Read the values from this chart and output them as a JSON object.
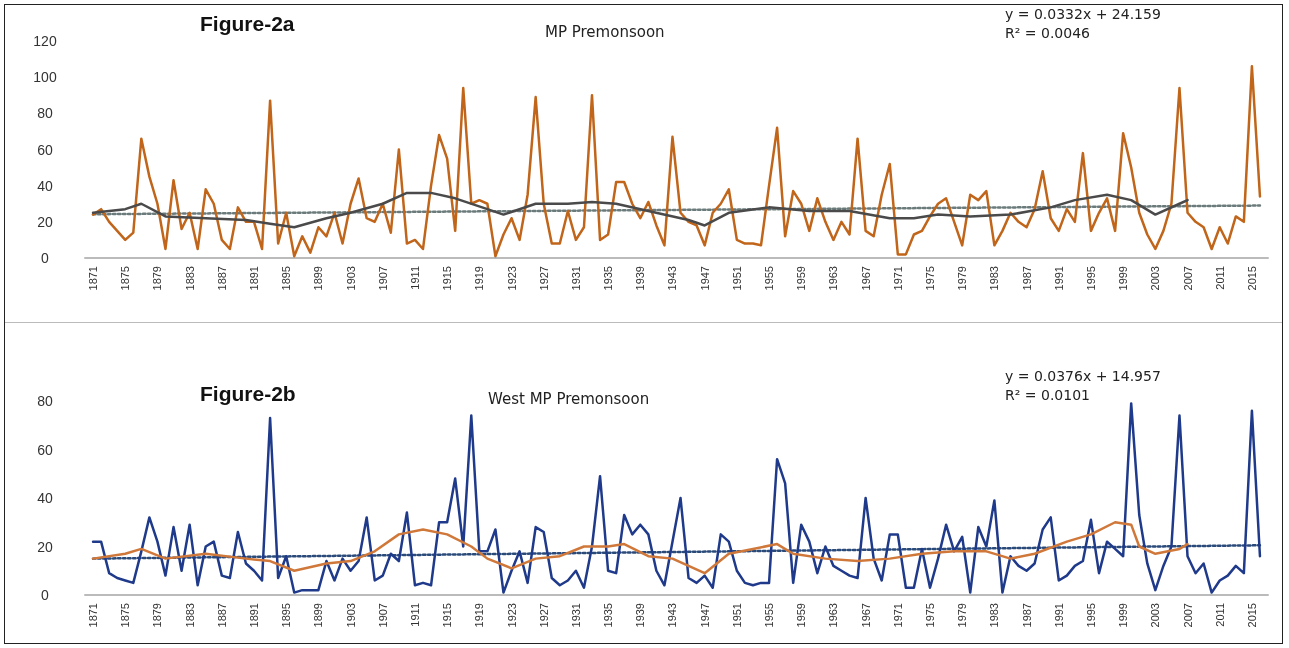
{
  "chart_data": [
    {
      "type": "line",
      "title": "MP Premonsoon",
      "annotations": [
        "Figure-2a",
        "y = 0.0332x + 24.159",
        "R² = 0.0046"
      ],
      "x": [
        1871,
        1872,
        1873,
        1874,
        1875,
        1876,
        1877,
        1878,
        1879,
        1880,
        1881,
        1882,
        1883,
        1884,
        1885,
        1886,
        1887,
        1888,
        1889,
        1890,
        1891,
        1892,
        1893,
        1894,
        1895,
        1896,
        1897,
        1898,
        1899,
        1900,
        1901,
        1902,
        1903,
        1904,
        1905,
        1906,
        1907,
        1908,
        1909,
        1910,
        1911,
        1912,
        1913,
        1914,
        1915,
        1916,
        1917,
        1918,
        1919,
        1920,
        1921,
        1922,
        1923,
        1924,
        1925,
        1926,
        1927,
        1928,
        1929,
        1930,
        1931,
        1932,
        1933,
        1934,
        1935,
        1936,
        1937,
        1938,
        1939,
        1940,
        1941,
        1942,
        1943,
        1944,
        1945,
        1946,
        1947,
        1948,
        1949,
        1950,
        1951,
        1952,
        1953,
        1954,
        1955,
        1956,
        1957,
        1958,
        1959,
        1960,
        1961,
        1962,
        1963,
        1964,
        1965,
        1966,
        1967,
        1968,
        1969,
        1970,
        1971,
        1972,
        1973,
        1974,
        1975,
        1976,
        1977,
        1978,
        1979,
        1980,
        1981,
        1982,
        1983,
        1984,
        1985,
        1986,
        1987,
        1988,
        1989,
        1990,
        1991,
        1992,
        1993,
        1994,
        1995,
        1996,
        1997,
        1998,
        1999,
        2000,
        2001,
        2002,
        2003,
        2004,
        2005,
        2006,
        2007,
        2008,
        2009,
        2010,
        2011,
        2012,
        2013,
        2014,
        2015,
        2016
      ],
      "series": [
        {
          "color": "#c0651a",
          "values": [
            24,
            27,
            20,
            15,
            10,
            14,
            66,
            45,
            30,
            5,
            43,
            16,
            25,
            5,
            38,
            30,
            10,
            5,
            28,
            20,
            20,
            5,
            87,
            8,
            25,
            1,
            12,
            3,
            17,
            12,
            25,
            8,
            30,
            44,
            22,
            20,
            30,
            14,
            60,
            8,
            10,
            5,
            40,
            68,
            55,
            15,
            94,
            30,
            32,
            30,
            1,
            13,
            22,
            10,
            35,
            89,
            30,
            8,
            8,
            26,
            10,
            17,
            90,
            10,
            13,
            42,
            42,
            30,
            22,
            31,
            18,
            7,
            67,
            25,
            20,
            18,
            7,
            25,
            30,
            38,
            10,
            8,
            8,
            7,
            40,
            72,
            12,
            37,
            30,
            15,
            33,
            20,
            10,
            20,
            13,
            66,
            15,
            12,
            35,
            52,
            2,
            2,
            13,
            15,
            23,
            30,
            33,
            20,
            7,
            35,
            32,
            37,
            7,
            15,
            25,
            20,
            17,
            27,
            48,
            22,
            15,
            27,
            20,
            58,
            15,
            25,
            33,
            15,
            69,
            50,
            25,
            13,
            5,
            15,
            30,
            94,
            25,
            20,
            17,
            5,
            17,
            8,
            23,
            20,
            106,
            34
          ]
        },
        {
          "color": "#4a4a4a",
          "x": [
            1871,
            1875,
            1877,
            1880,
            1885,
            1890,
            1893,
            1896,
            1900,
            1903,
            1907,
            1910,
            1913,
            1916,
            1920,
            1922,
            1926,
            1930,
            1933,
            1936,
            1940,
            1945,
            1947,
            1950,
            1955,
            1960,
            1965,
            1970,
            1973,
            1976,
            1980,
            1985,
            1990,
            1993,
            1997,
            2000,
            2003,
            2006,
            2007
          ],
          "values": [
            25,
            27,
            30,
            23,
            22,
            21,
            19,
            17,
            22,
            25,
            30,
            36,
            36,
            33,
            27,
            24,
            30,
            30,
            31,
            30,
            26,
            21,
            18,
            25,
            28,
            26,
            26,
            22,
            22,
            24,
            23,
            24,
            28,
            32,
            35,
            32,
            24,
            30,
            32
          ]
        },
        {
          "color": "#6b7b7b",
          "line_style": "dotted",
          "x": [
            1871,
            2016
          ],
          "values": [
            24.2,
            29.0
          ]
        }
      ],
      "xlim": [
        1870,
        2017
      ],
      "xticks": [
        1871,
        1875,
        1879,
        1883,
        1887,
        1891,
        1895,
        1899,
        1903,
        1907,
        1911,
        1915,
        1919,
        1923,
        1927,
        1931,
        1935,
        1939,
        1943,
        1947,
        1951,
        1955,
        1959,
        1963,
        1967,
        1971,
        1975,
        1979,
        1983,
        1987,
        1991,
        1995,
        1999,
        2003,
        2007,
        2011,
        2015
      ],
      "ylim": [
        0,
        120
      ],
      "yticks": [
        0,
        20,
        40,
        60,
        80,
        100,
        120
      ],
      "grid": false,
      "marker": "none"
    },
    {
      "type": "line",
      "title": "West MP Premonsoon",
      "annotations": [
        "Figure-2b",
        "y = 0.0376x + 14.957",
        "R² = 0.0101"
      ],
      "x": [
        1871,
        1872,
        1873,
        1874,
        1875,
        1876,
        1877,
        1878,
        1879,
        1880,
        1881,
        1882,
        1883,
        1884,
        1885,
        1886,
        1887,
        1888,
        1889,
        1890,
        1891,
        1892,
        1893,
        1894,
        1895,
        1896,
        1897,
        1898,
        1899,
        1900,
        1901,
        1902,
        1903,
        1904,
        1905,
        1906,
        1907,
        1908,
        1909,
        1910,
        1911,
        1912,
        1913,
        1914,
        1915,
        1916,
        1917,
        1918,
        1919,
        1920,
        1921,
        1922,
        1923,
        1924,
        1925,
        1926,
        1927,
        1928,
        1929,
        1930,
        1931,
        1932,
        1933,
        1934,
        1935,
        1936,
        1937,
        1938,
        1939,
        1940,
        1941,
        1942,
        1943,
        1944,
        1945,
        1946,
        1947,
        1948,
        1949,
        1950,
        1951,
        1952,
        1953,
        1954,
        1955,
        1956,
        1957,
        1958,
        1959,
        1960,
        1961,
        1962,
        1963,
        1964,
        1965,
        1966,
        1967,
        1968,
        1969,
        1970,
        1971,
        1972,
        1973,
        1974,
        1975,
        1976,
        1977,
        1978,
        1979,
        1980,
        1981,
        1982,
        1983,
        1984,
        1985,
        1986,
        1987,
        1988,
        1989,
        1990,
        1991,
        1992,
        1993,
        1994,
        1995,
        1996,
        1997,
        1998,
        1999,
        2000,
        2001,
        2002,
        2003,
        2004,
        2005,
        2006,
        2007,
        2008,
        2009,
        2010,
        2011,
        2012,
        2013,
        2014,
        2015,
        2016
      ],
      "series": [
        {
          "color": "#1f3a8a",
          "values": [
            22,
            22,
            9,
            7,
            6,
            5,
            18,
            32,
            22,
            8,
            28,
            10,
            29,
            4,
            20,
            22,
            8,
            7,
            26,
            13,
            10,
            6,
            73,
            7,
            16,
            1,
            2,
            2,
            2,
            14,
            6,
            15,
            10,
            14,
            32,
            6,
            8,
            17,
            14,
            34,
            4,
            5,
            4,
            30,
            30,
            48,
            20,
            74,
            18,
            18,
            27,
            1,
            10,
            18,
            5,
            28,
            26,
            7,
            4,
            6,
            10,
            3,
            20,
            49,
            10,
            9,
            33,
            25,
            29,
            25,
            10,
            4,
            22,
            40,
            7,
            5,
            8,
            3,
            25,
            22,
            10,
            5,
            4,
            5,
            5,
            56,
            46,
            5,
            29,
            22,
            9,
            20,
            12,
            10,
            8,
            7,
            40,
            15,
            6,
            25,
            25,
            3,
            3,
            19,
            3,
            15,
            29,
            18,
            24,
            1,
            28,
            20,
            39,
            1,
            16,
            12,
            10,
            13,
            27,
            32,
            6,
            8,
            12,
            14,
            31,
            9,
            22,
            19,
            16,
            79,
            33,
            13,
            2,
            12,
            20,
            74,
            16,
            9,
            13,
            1,
            6,
            8,
            12,
            9,
            76,
            16
          ]
        },
        {
          "color": "#d0783a",
          "x": [
            1871,
            1875,
            1877,
            1880,
            1885,
            1890,
            1893,
            1896,
            1900,
            1903,
            1906,
            1909,
            1912,
            1915,
            1918,
            1920,
            1923,
            1926,
            1929,
            1932,
            1935,
            1937,
            1940,
            1943,
            1947,
            1950,
            1953,
            1956,
            1958,
            1962,
            1966,
            1970,
            1974,
            1978,
            1982,
            1985,
            1988,
            1992,
            1995,
            1998,
            2000,
            2001,
            2003,
            2006,
            2007
          ],
          "values": [
            15,
            17,
            19,
            15,
            17,
            15,
            14,
            10,
            13,
            14,
            18,
            25,
            27,
            25,
            20,
            15,
            11,
            15,
            16,
            20,
            20,
            21,
            16,
            15,
            9,
            17,
            19,
            21,
            17,
            15,
            14,
            15,
            17,
            18,
            18,
            15,
            17,
            22,
            25,
            30,
            29,
            20,
            17,
            19,
            21
          ]
        },
        {
          "color": "#2a4a7a",
          "line_style": "dotted",
          "x": [
            1871,
            2016
          ],
          "values": [
            15.0,
            20.5
          ]
        }
      ],
      "xlim": [
        1870,
        2017
      ],
      "xticks": [
        1871,
        1875,
        1879,
        1883,
        1887,
        1891,
        1895,
        1899,
        1903,
        1907,
        1911,
        1915,
        1919,
        1923,
        1927,
        1931,
        1935,
        1939,
        1943,
        1947,
        1951,
        1955,
        1959,
        1963,
        1967,
        1971,
        1975,
        1979,
        1983,
        1987,
        1991,
        1995,
        1999,
        2003,
        2007,
        2011,
        2015
      ],
      "ylim": [
        0,
        80
      ],
      "yticks": [
        0,
        20,
        40,
        60,
        80
      ],
      "grid": false,
      "marker": "none"
    }
  ]
}
